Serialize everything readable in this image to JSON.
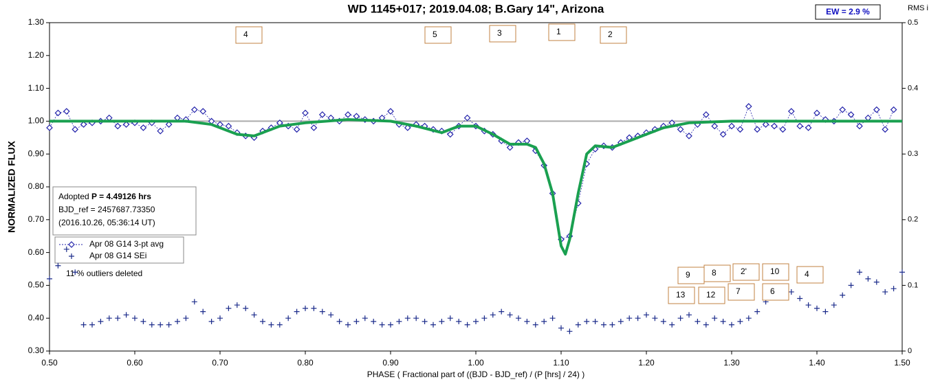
{
  "chart_data": {
    "type": "scatter",
    "title": "WD 1145+017; 2019.04.08; B.Gary 14\", Arizona",
    "ew_label": "EW =  2.9 %",
    "y2_label": "RMS i",
    "y_label": "NORMALIZED FLUX",
    "x_label": "PHASE ( Fractional part of ((BJD - BJD_ref) / (P [hrs] / 24) )",
    "info": [
      "Adopted ",
      "P = 4.49126 hrs",
      "BJD_ref = 2457687.73350",
      "(2016.10.26, 05:36:14 UT)"
    ],
    "note": "11 % outliers deleted",
    "annotations": [
      "4",
      "5",
      "3",
      "1",
      "2",
      "9",
      "8",
      "2'",
      "10",
      "4",
      "13",
      "12",
      "7",
      "6"
    ],
    "xlim": [
      0.5,
      1.5
    ],
    "ylim": [
      0.3,
      1.3
    ],
    "y2lim": [
      0,
      0.5
    ],
    "xticks": [
      {
        "value": 0.5,
        "label": "0.50"
      },
      {
        "value": 0.6,
        "label": "0.60"
      },
      {
        "value": 0.7,
        "label": "0.70"
      },
      {
        "value": 0.8,
        "label": "0.80"
      },
      {
        "value": 0.9,
        "label": "0.90"
      },
      {
        "value": 1.0,
        "label": "1.00"
      },
      {
        "value": 1.1,
        "label": "1.10"
      },
      {
        "value": 1.2,
        "label": "1.20"
      },
      {
        "value": 1.3,
        "label": "1.30"
      },
      {
        "value": 1.4,
        "label": "1.40"
      },
      {
        "value": 1.5,
        "label": "1.50"
      }
    ],
    "yticks": [
      {
        "value": 0.3,
        "label": "0.30"
      },
      {
        "value": 0.4,
        "label": "0.40"
      },
      {
        "value": 0.5,
        "label": "0.50"
      },
      {
        "value": 0.6,
        "label": "0.60"
      },
      {
        "value": 0.7,
        "label": "0.70"
      },
      {
        "value": 0.8,
        "label": "0.80"
      },
      {
        "value": 0.9,
        "label": "0.90"
      },
      {
        "value": 1.0,
        "label": "1.00"
      },
      {
        "value": 1.1,
        "label": "1.10"
      },
      {
        "value": 1.2,
        "label": "1.20"
      },
      {
        "value": 1.3,
        "label": "1.30"
      }
    ],
    "y2ticks": [
      0,
      0.1,
      0.2,
      0.3,
      0.4,
      0.5
    ],
    "reference_line": 1,
    "series": [
      {
        "name": "Apr 08 G14 3-pt avg",
        "color": "#2222aa",
        "marker": "diamond",
        "x": [
          0.5,
          0.51,
          0.52,
          0.53,
          0.54,
          0.55,
          0.56,
          0.57,
          0.58,
          0.59,
          0.6,
          0.61,
          0.62,
          0.63,
          0.64,
          0.65,
          0.66,
          0.67,
          0.68,
          0.69,
          0.7,
          0.71,
          0.72,
          0.73,
          0.74,
          0.75,
          0.76,
          0.77,
          0.78,
          0.79,
          0.8,
          0.81,
          0.82,
          0.83,
          0.84,
          0.85,
          0.86,
          0.87,
          0.88,
          0.89,
          0.9,
          0.91,
          0.92,
          0.93,
          0.94,
          0.95,
          0.96,
          0.97,
          0.98,
          0.99,
          1.0,
          1.01,
          1.02,
          1.03,
          1.04,
          1.05,
          1.06,
          1.07,
          1.08,
          1.09,
          1.1,
          1.11,
          1.12,
          1.13,
          1.14,
          1.15,
          1.16,
          1.17,
          1.18,
          1.19,
          1.2,
          1.21,
          1.22,
          1.23,
          1.24,
          1.25,
          1.26,
          1.27,
          1.28,
          1.29,
          1.3,
          1.31,
          1.32,
          1.33,
          1.34,
          1.35,
          1.36,
          1.37,
          1.38,
          1.39,
          1.4,
          1.41,
          1.42,
          1.43,
          1.44,
          1.45,
          1.46,
          1.47,
          1.48,
          1.49
        ],
        "values": [
          0.98,
          1.025,
          1.03,
          0.975,
          0.99,
          0.995,
          1.0,
          1.01,
          0.985,
          0.99,
          0.995,
          0.98,
          0.995,
          0.97,
          0.99,
          1.01,
          1.005,
          1.035,
          1.03,
          1.0,
          0.99,
          0.985,
          0.965,
          0.955,
          0.95,
          0.97,
          0.98,
          0.995,
          0.985,
          0.975,
          1.025,
          0.98,
          1.02,
          1.01,
          1.0,
          1.02,
          1.015,
          1.005,
          1.0,
          1.01,
          1.03,
          0.99,
          0.98,
          0.99,
          0.985,
          0.975,
          0.97,
          0.96,
          0.985,
          1.01,
          0.985,
          0.97,
          0.96,
          0.94,
          0.92,
          0.935,
          0.94,
          0.91,
          0.865,
          0.78,
          0.64,
          0.65,
          0.75,
          0.87,
          0.915,
          0.925,
          0.92,
          0.935,
          0.95,
          0.955,
          0.965,
          0.975,
          0.985,
          0.995,
          0.975,
          0.955,
          0.99,
          1.02,
          0.985,
          0.96,
          0.985,
          0.975,
          1.045,
          0.975,
          0.99,
          0.985,
          0.975,
          1.03,
          0.985,
          0.98,
          1.025,
          1.005,
          1.0,
          1.035,
          1.02,
          0.985,
          1.01,
          1.035,
          0.975,
          1.035
        ]
      },
      {
        "name": "Apr 08 G14 SEi",
        "color": "#1a2a8a",
        "marker": "plus",
        "axis": "y2",
        "x": [
          0.5,
          0.51,
          0.52,
          0.53,
          0.54,
          0.55,
          0.56,
          0.57,
          0.58,
          0.59,
          0.6,
          0.61,
          0.62,
          0.63,
          0.64,
          0.65,
          0.66,
          0.67,
          0.68,
          0.69,
          0.7,
          0.71,
          0.72,
          0.73,
          0.74,
          0.75,
          0.76,
          0.77,
          0.78,
          0.79,
          0.8,
          0.81,
          0.82,
          0.83,
          0.84,
          0.85,
          0.86,
          0.87,
          0.88,
          0.89,
          0.9,
          0.91,
          0.92,
          0.93,
          0.94,
          0.95,
          0.96,
          0.97,
          0.98,
          0.99,
          1.0,
          1.01,
          1.02,
          1.03,
          1.04,
          1.05,
          1.06,
          1.07,
          1.08,
          1.09,
          1.1,
          1.11,
          1.12,
          1.13,
          1.14,
          1.15,
          1.16,
          1.17,
          1.18,
          1.19,
          1.2,
          1.21,
          1.22,
          1.23,
          1.24,
          1.25,
          1.26,
          1.27,
          1.28,
          1.29,
          1.3,
          1.31,
          1.32,
          1.33,
          1.34,
          1.35,
          1.36,
          1.37,
          1.38,
          1.39,
          1.4,
          1.41,
          1.42,
          1.43,
          1.44,
          1.45,
          1.46,
          1.47,
          1.48,
          1.49,
          1.5
        ],
        "values": [
          0.11,
          0.13,
          0.155,
          0.12,
          0.04,
          0.04,
          0.045,
          0.05,
          0.05,
          0.055,
          0.05,
          0.045,
          0.04,
          0.04,
          0.04,
          0.045,
          0.05,
          0.075,
          0.06,
          0.045,
          0.05,
          0.065,
          0.07,
          0.065,
          0.055,
          0.045,
          0.04,
          0.04,
          0.05,
          0.06,
          0.065,
          0.065,
          0.06,
          0.055,
          0.045,
          0.04,
          0.045,
          0.05,
          0.045,
          0.04,
          0.04,
          0.045,
          0.05,
          0.05,
          0.045,
          0.04,
          0.045,
          0.05,
          0.045,
          0.04,
          0.045,
          0.05,
          0.055,
          0.06,
          0.055,
          0.05,
          0.045,
          0.04,
          0.045,
          0.05,
          0.035,
          0.03,
          0.04,
          0.045,
          0.045,
          0.04,
          0.04,
          0.045,
          0.05,
          0.05,
          0.055,
          0.05,
          0.045,
          0.04,
          0.05,
          0.055,
          0.045,
          0.04,
          0.05,
          0.045,
          0.04,
          0.045,
          0.05,
          0.06,
          0.075,
          0.085,
          0.09,
          0.09,
          0.08,
          0.07,
          0.065,
          0.06,
          0.07,
          0.085,
          0.1,
          0.12,
          0.11,
          0.105,
          0.09,
          0.095,
          0.12
        ]
      }
    ],
    "model": {
      "color": "#1aa050",
      "x": [
        0.5,
        0.6,
        0.66,
        0.69,
        0.72,
        0.74,
        0.77,
        0.8,
        0.85,
        0.9,
        0.93,
        0.96,
        0.98,
        1.0,
        1.02,
        1.04,
        1.06,
        1.07,
        1.08,
        1.09,
        1.1,
        1.105,
        1.11,
        1.12,
        1.13,
        1.14,
        1.16,
        1.18,
        1.2,
        1.22,
        1.25,
        1.3,
        1.5
      ],
      "values": [
        1.0,
        1.0,
        1.0,
        0.99,
        0.96,
        0.955,
        0.985,
        0.995,
        1.005,
        1.0,
        0.985,
        0.965,
        0.985,
        0.985,
        0.96,
        0.93,
        0.93,
        0.92,
        0.87,
        0.78,
        0.62,
        0.595,
        0.64,
        0.78,
        0.9,
        0.925,
        0.92,
        0.94,
        0.96,
        0.98,
        0.995,
        1.0,
        1.0
      ]
    }
  }
}
